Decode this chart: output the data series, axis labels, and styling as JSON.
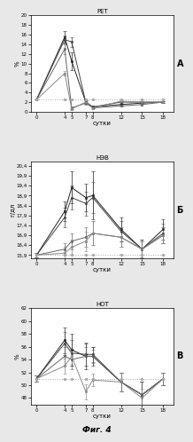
{
  "panels": [
    {
      "title": "РЕТ",
      "ylabel": "%",
      "xlabel": "сутки",
      "label": "А",
      "ylim": [
        0,
        20
      ],
      "yticks": [
        0,
        2,
        4,
        6,
        8,
        10,
        12,
        14,
        16,
        18,
        20
      ],
      "xticks": [
        0,
        4,
        5,
        7,
        8,
        12,
        15,
        18
      ],
      "x": [
        0,
        4,
        5,
        7,
        8,
        12,
        15,
        18
      ],
      "series": [
        {
          "y": [
            2.5,
            15.5,
            10.5,
            2.0,
            1.0,
            1.5,
            1.8,
            2.0
          ],
          "yerr": [
            0.0,
            1.2,
            1.8,
            0.3,
            0.0,
            0.2,
            0.2,
            0.2
          ],
          "marker": "s",
          "linestyle": "-",
          "color": "#222222"
        },
        {
          "y": [
            2.5,
            15.0,
            14.5,
            2.0,
            1.0,
            2.0,
            2.0,
            2.0
          ],
          "yerr": [
            0.0,
            0.8,
            1.0,
            0.3,
            0.0,
            0.2,
            0.2,
            0.2
          ],
          "marker": "s",
          "linestyle": "-",
          "color": "#444444"
        },
        {
          "y": [
            2.5,
            13.0,
            0.8,
            1.8,
            0.8,
            1.2,
            1.5,
            2.0
          ],
          "yerr": [
            0.0,
            1.0,
            0.3,
            0.3,
            0.0,
            0.2,
            0.2,
            0.2
          ],
          "marker": "s",
          "linestyle": "-",
          "color": "#666666"
        },
        {
          "y": [
            2.5,
            8.0,
            0.6,
            2.0,
            0.8,
            2.2,
            2.0,
            2.0
          ],
          "yerr": [
            0.0,
            0.5,
            0.2,
            0.2,
            0.0,
            0.2,
            0.2,
            0.2
          ],
          "marker": "s",
          "linestyle": "-",
          "color": "#888888"
        },
        {
          "y": [
            2.5,
            2.5,
            2.5,
            2.5,
            2.5,
            2.5,
            2.5,
            2.5
          ],
          "yerr": [
            0.0,
            0.0,
            0.0,
            0.0,
            0.0,
            0.0,
            0.0,
            0.0
          ],
          "marker": "o",
          "linestyle": ":",
          "color": "#aaaaaa"
        }
      ]
    },
    {
      "title": "НЭВ",
      "ylabel": "г/дл",
      "xlabel": "сутки",
      "label": "Б",
      "ylim": [
        15.75,
        20.6
      ],
      "yticks": [
        15.9,
        16.4,
        16.9,
        17.4,
        17.9,
        18.4,
        18.9,
        19.4,
        19.9,
        20.4
      ],
      "yticklabels": [
        "15,9",
        "16,4",
        "16,9",
        "17,4",
        "17,9",
        "18,4",
        "18,9",
        "19,4",
        "19,9",
        "20,4"
      ],
      "xticks": [
        0,
        4,
        5,
        7,
        8,
        12,
        15,
        18
      ],
      "x": [
        0,
        4,
        5,
        7,
        8,
        12,
        15,
        18
      ],
      "series": [
        {
          "y": [
            15.9,
            18.1,
            19.3,
            18.8,
            18.9,
            17.2,
            16.2,
            17.2
          ],
          "yerr": [
            0.1,
            0.5,
            0.8,
            0.7,
            1.2,
            0.6,
            0.5,
            0.5
          ],
          "marker": "s",
          "linestyle": "-",
          "color": "#222222"
        },
        {
          "y": [
            15.9,
            17.8,
            18.8,
            18.5,
            18.8,
            17.1,
            16.2,
            17.0
          ],
          "yerr": [
            0.1,
            0.5,
            0.6,
            0.6,
            0.8,
            0.5,
            0.5,
            0.5
          ],
          "marker": "s",
          "linestyle": "-",
          "color": "#444444"
        },
        {
          "y": [
            15.9,
            16.2,
            16.6,
            16.8,
            17.0,
            16.8,
            16.2,
            16.9
          ],
          "yerr": [
            0.1,
            0.3,
            0.4,
            0.5,
            0.6,
            0.5,
            0.4,
            0.4
          ],
          "marker": "s",
          "linestyle": "-",
          "color": "#666666"
        },
        {
          "y": [
            15.9,
            16.0,
            16.3,
            16.6,
            17.0,
            16.8,
            16.2,
            16.9
          ],
          "yerr": [
            0.1,
            0.3,
            0.4,
            0.5,
            0.6,
            0.5,
            0.4,
            0.4
          ],
          "marker": "s",
          "linestyle": "-",
          "color": "#888888"
        },
        {
          "y": [
            15.9,
            15.9,
            15.9,
            15.9,
            15.9,
            15.9,
            15.9,
            15.9
          ],
          "yerr": [
            0.0,
            0.0,
            0.0,
            0.0,
            0.0,
            0.0,
            0.0,
            0.0
          ],
          "marker": "o",
          "linestyle": ":",
          "color": "#aaaaaa"
        }
      ]
    },
    {
      "title": "НОТ",
      "ylabel": "%",
      "xlabel": "сутки",
      "label": "В",
      "ylim": [
        47,
        62
      ],
      "yticks": [
        48,
        50,
        52,
        54,
        56,
        58,
        60,
        62
      ],
      "xticks": [
        0,
        4,
        5,
        7,
        8,
        12,
        15,
        18
      ],
      "x": [
        0,
        4,
        5,
        7,
        8,
        12,
        15,
        18
      ],
      "series": [
        {
          "y": [
            51.0,
            57.0,
            55.5,
            54.5,
            54.5,
            50.5,
            48.5,
            51.0
          ],
          "yerr": [
            0.5,
            2.0,
            2.5,
            2.0,
            1.5,
            1.5,
            2.0,
            1.0
          ],
          "marker": "s",
          "linestyle": "-",
          "color": "#222222"
        },
        {
          "y": [
            51.0,
            56.5,
            55.0,
            54.8,
            54.8,
            50.5,
            48.5,
            51.0
          ],
          "yerr": [
            0.5,
            1.8,
            2.0,
            1.8,
            1.2,
            1.5,
            2.0,
            1.0
          ],
          "marker": "s",
          "linestyle": "-",
          "color": "#444444"
        },
        {
          "y": [
            51.0,
            54.5,
            54.0,
            54.5,
            54.5,
            50.5,
            48.5,
            51.0
          ],
          "yerr": [
            0.5,
            1.5,
            1.5,
            1.5,
            1.0,
            1.5,
            2.0,
            1.0
          ],
          "marker": "s",
          "linestyle": "-",
          "color": "#666666"
        },
        {
          "y": [
            51.0,
            53.0,
            54.5,
            49.0,
            50.8,
            50.5,
            48.0,
            51.0
          ],
          "yerr": [
            0.5,
            1.2,
            1.2,
            1.2,
            1.0,
            1.5,
            1.5,
            1.0
          ],
          "marker": "s",
          "linestyle": "-",
          "color": "#888888"
        },
        {
          "y": [
            51.0,
            51.0,
            51.0,
            51.0,
            51.0,
            51.0,
            51.0,
            51.0
          ],
          "yerr": [
            0.0,
            0.0,
            0.0,
            0.0,
            0.0,
            0.0,
            0.0,
            0.0
          ],
          "marker": "o",
          "linestyle": ":",
          "color": "#aaaaaa"
        }
      ]
    }
  ],
  "fig4_label": "Фиг. 4",
  "background_color": "#e8e8e8",
  "panel_bg": "#ffffff",
  "title_fontsize": 5,
  "ylabel_fontsize": 5,
  "xlabel_fontsize": 5,
  "tick_fontsize": 4,
  "panel_label_fontsize": 7,
  "marker_size": 2,
  "linewidth": 0.7,
  "capsize": 1.2,
  "elinewidth": 0.5
}
